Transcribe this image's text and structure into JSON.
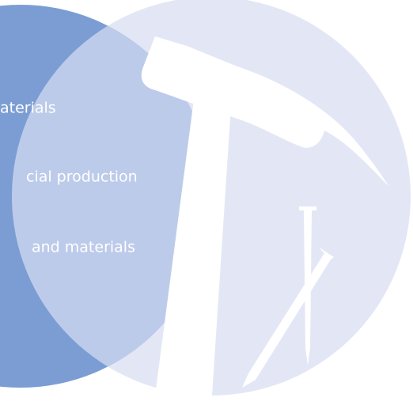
{
  "items": [
    "aterials",
    "cial production",
    "and materials"
  ]
}
